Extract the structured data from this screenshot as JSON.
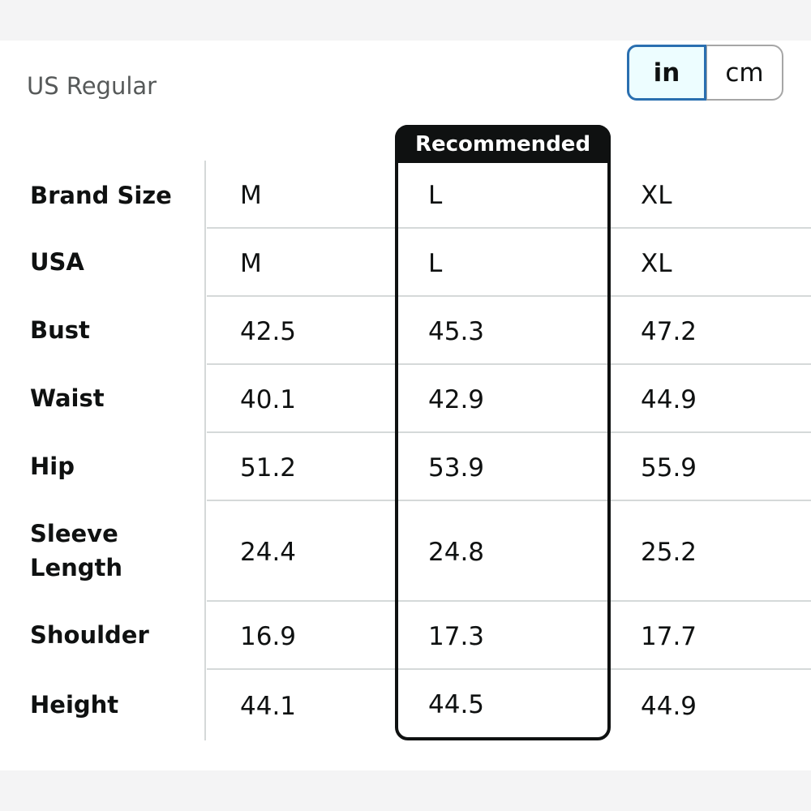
{
  "region": "US Regular",
  "units": {
    "options": [
      "in",
      "cm"
    ],
    "selected": "in"
  },
  "recommended_label": "Recommended",
  "table": {
    "sizes": [
      "M",
      "L",
      "XL"
    ],
    "recommended_size": "L",
    "rows": [
      {
        "label": "Brand Size",
        "values": [
          "M",
          "L",
          "XL"
        ]
      },
      {
        "label": "USA",
        "values": [
          "M",
          "L",
          "XL"
        ]
      },
      {
        "label": "Bust",
        "values": [
          "42.5",
          "45.3",
          "47.2"
        ]
      },
      {
        "label": "Waist",
        "values": [
          "40.1",
          "42.9",
          "44.9"
        ]
      },
      {
        "label": "Hip",
        "values": [
          "51.2",
          "53.9",
          "55.9"
        ]
      },
      {
        "label": "Sleeve Length",
        "values": [
          "24.4",
          "24.8",
          "25.2"
        ]
      },
      {
        "label": "Shoulder",
        "values": [
          "16.9",
          "17.3",
          "17.7"
        ]
      },
      {
        "label": "Height",
        "values": [
          "44.1",
          "44.5",
          "44.9"
        ]
      }
    ]
  }
}
